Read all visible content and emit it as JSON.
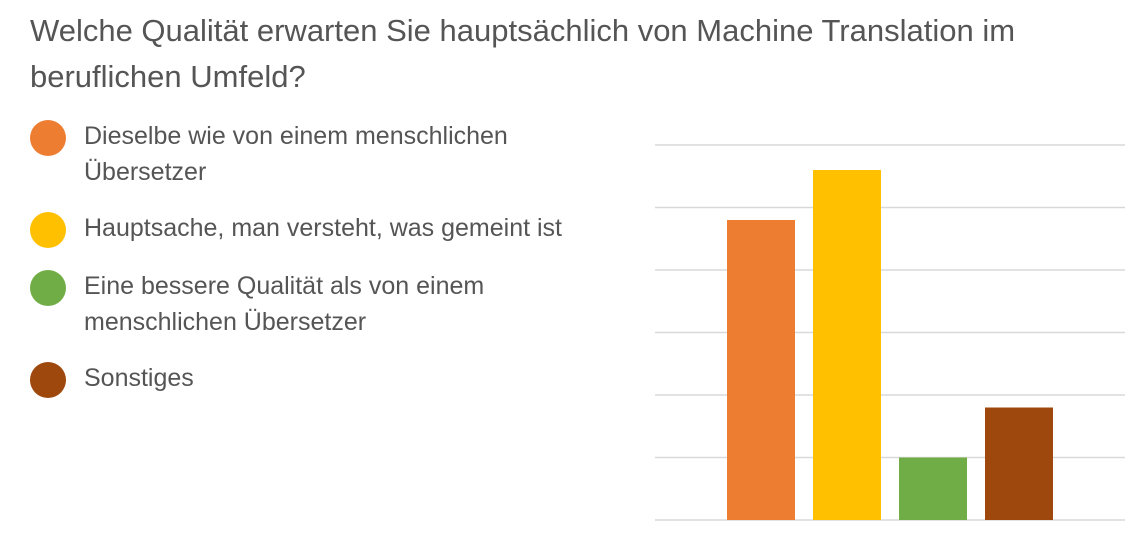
{
  "title": "Welche Qualität erwarten Sie hauptsächlich von Machine Translation im beruflichen Umfeld?",
  "chart_data": {
    "type": "bar",
    "title": "Welche Qualität erwarten Sie hauptsächlich von Machine Translation im beruflichen Umfeld?",
    "categories": [
      "Dieselbe wie von einem menschlichen Übersetzer",
      "Hauptsache, man versteht, was gemeint ist",
      "Eine bessere Qualität als von einem menschlichen Übersetzer",
      "Sonstiges"
    ],
    "values": [
      4.8,
      5.6,
      1.0,
      1.8
    ],
    "colors": [
      "#ED7D31",
      "#FFC000",
      "#70AD47",
      "#9E480E"
    ],
    "ylim": [
      0,
      6
    ],
    "grid": true,
    "legend": "left"
  }
}
